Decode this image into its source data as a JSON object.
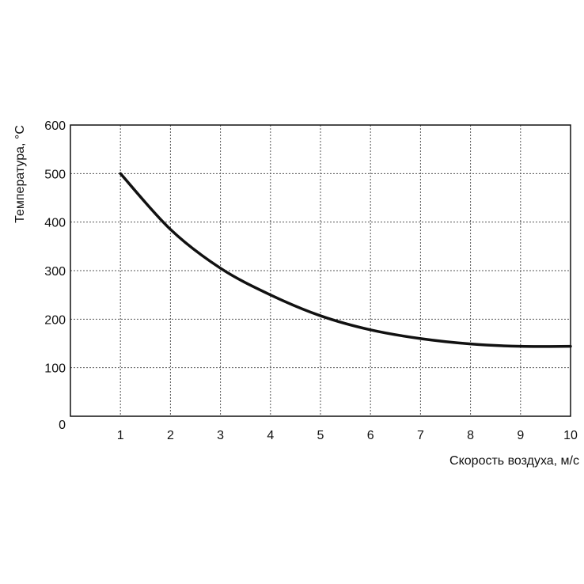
{
  "chart_data": {
    "type": "line",
    "title": "",
    "xlabel": "Скорость воздуха, м/с",
    "ylabel": "Температура, °C",
    "xlim": [
      0,
      10
    ],
    "ylim": [
      0,
      600
    ],
    "x_ticks": [
      1,
      2,
      3,
      4,
      5,
      6,
      7,
      8,
      9,
      10
    ],
    "y_ticks": [
      0,
      100,
      200,
      300,
      400,
      500,
      600
    ],
    "grid": true,
    "series": [
      {
        "x": [
          1,
          2,
          3,
          4,
          5,
          6,
          7,
          8,
          9,
          10
        ],
        "y": [
          500,
          385,
          305,
          250,
          207,
          178,
          160,
          149,
          144,
          144
        ]
      }
    ]
  }
}
